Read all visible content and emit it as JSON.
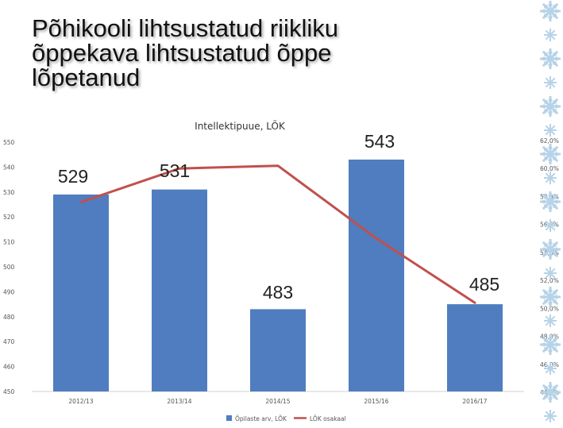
{
  "slide": {
    "title_lines": [
      "Põhikooli lihtsustatud riikliku",
      "õppekava lihtsustatud õppe",
      "lõpetanud"
    ]
  },
  "chart_data": {
    "type": "bar",
    "title": "Intellektipuue, LÕK",
    "categories": [
      "2012/13",
      "2013/14",
      "2014/15",
      "2015/16",
      "2016/17"
    ],
    "series": [
      {
        "name": "Õpilaste arv, LÕK",
        "type": "bar",
        "axis": "left",
        "values": [
          529,
          531,
          483,
          543,
          485
        ],
        "color": "#4F7DC0"
      },
      {
        "name": "LÕK osakaal",
        "type": "line",
        "axis": "right",
        "values": [
          57.6,
          60.0,
          60.2,
          55.0,
          50.4
        ],
        "color": "#C0504D"
      }
    ],
    "data_labels": [
      "529",
      "531",
      "483",
      "543",
      "485"
    ],
    "left_axis": {
      "ylim": [
        450,
        550
      ],
      "ticks": [
        "450",
        "460",
        "470",
        "480",
        "490",
        "500",
        "510",
        "520",
        "530",
        "540",
        "550"
      ]
    },
    "right_axis": {
      "ylim": [
        44,
        62
      ],
      "ticks": [
        "44,0%",
        "46,0%",
        "48,0%",
        "50,0%",
        "52,0%",
        "54,0%",
        "56,0%",
        "58,0%",
        "60,0%",
        "62,0%"
      ]
    },
    "grid": false,
    "legend_position": "bottom",
    "colors": {
      "bar": "#4F7DC0",
      "line": "#C0504D",
      "snowflake": "#B7D3E8"
    }
  }
}
